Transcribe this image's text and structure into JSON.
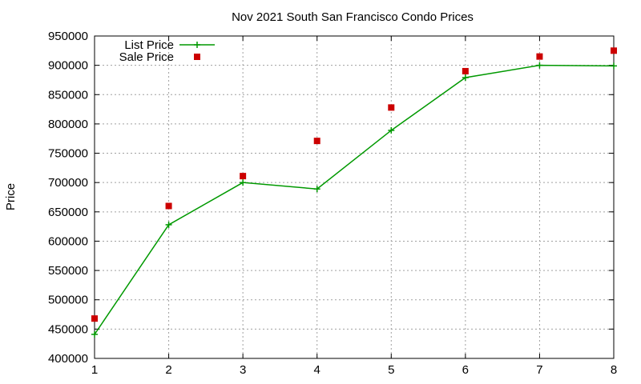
{
  "chart_data": {
    "type": "line",
    "title": "Nov 2021 South San Francisco Condo Prices",
    "xlabel": "",
    "ylabel": "Price",
    "xlim": [
      1,
      8
    ],
    "ylim": [
      400000,
      950000
    ],
    "x_ticks": [
      1,
      2,
      3,
      4,
      5,
      6,
      7,
      8
    ],
    "y_ticks": [
      400000,
      450000,
      500000,
      550000,
      600000,
      650000,
      700000,
      750000,
      800000,
      850000,
      900000,
      950000
    ],
    "grid": true,
    "legend_position": "top-left",
    "series": [
      {
        "name": "List Price",
        "style": "line-with-plus-markers",
        "color": "#009900",
        "x": [
          1,
          2,
          3,
          4,
          5,
          6,
          7,
          8
        ],
        "values": [
          441000,
          628000,
          700000,
          689000,
          789000,
          879000,
          900000,
          899000
        ]
      },
      {
        "name": "Sale Price",
        "style": "square-markers",
        "color": "#cc0000",
        "x": [
          1,
          2,
          3,
          4,
          5,
          6,
          7,
          8
        ],
        "values": [
          468000,
          660000,
          711000,
          771000,
          828000,
          890000,
          915000,
          925000
        ]
      }
    ]
  }
}
